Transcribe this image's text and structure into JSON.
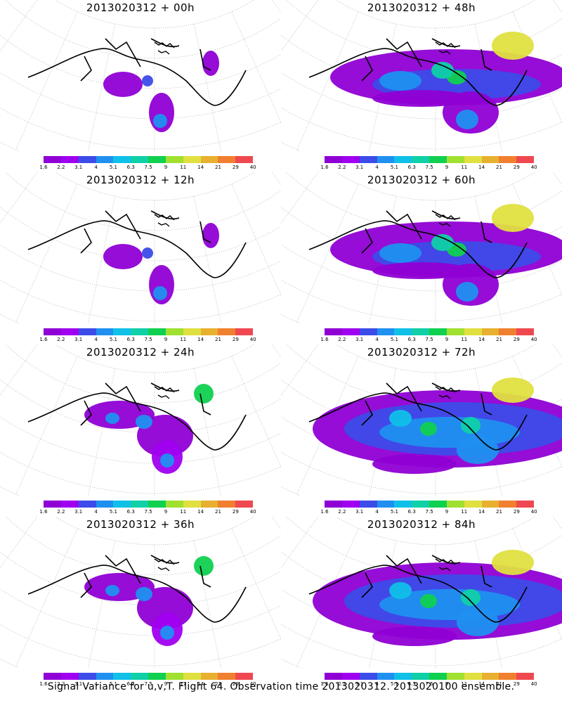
{
  "panels": [
    {
      "title": "2013020312 + 00h",
      "coverage": "small"
    },
    {
      "title": "2013020312 + 48h",
      "coverage": "large"
    },
    {
      "title": "2013020312 + 12h",
      "coverage": "small"
    },
    {
      "title": "2013020312 + 60h",
      "coverage": "large"
    },
    {
      "title": "2013020312 + 24h",
      "coverage": "medium"
    },
    {
      "title": "2013020312 + 72h",
      "coverage": "full"
    },
    {
      "title": "2013020312 + 36h",
      "coverage": "medium"
    },
    {
      "title": "2013020312 + 84h",
      "coverage": "full"
    }
  ],
  "colorbar": {
    "labels": [
      "1.6",
      "2.2",
      "3.1",
      "4",
      "5.1",
      "6.3",
      "7.5",
      "9",
      "11",
      "14",
      "21",
      "29",
      "40"
    ],
    "colors": [
      "#8f00d4",
      "#a000f0",
      "#3c4ce8",
      "#2090f0",
      "#10c0e8",
      "#10d0a8",
      "#10d050",
      "#a0e030",
      "#e0e040",
      "#e8b030",
      "#f08030",
      "#f04850",
      "#f01080"
    ]
  },
  "footer": "Signal Variance for u,v,T. Flight 64. Observation time 2013020312. 2013020100 ensemble."
}
